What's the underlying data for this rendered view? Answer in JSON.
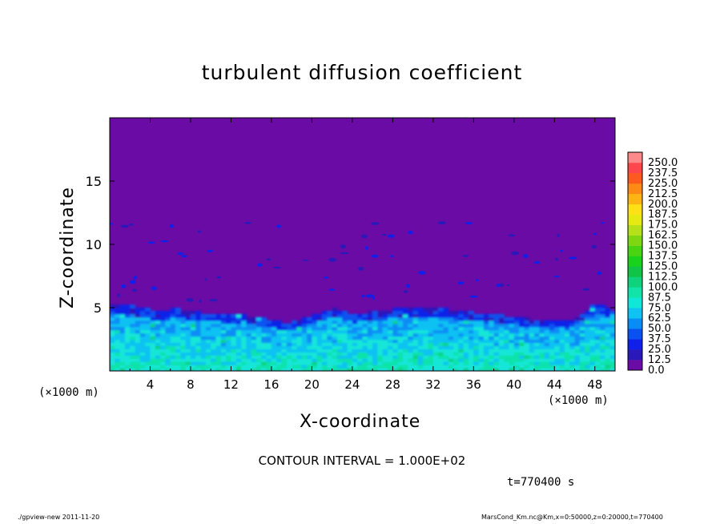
{
  "chart_data": {
    "type": "heatmap",
    "title": "turbulent diffusion coefficient",
    "xlabel": "X-coordinate",
    "ylabel": "Z-coordinate",
    "x_unit": "(×1000 m)",
    "x_ticks": [
      4,
      8,
      12,
      16,
      20,
      24,
      28,
      32,
      36,
      40,
      44,
      48
    ],
    "y_ticks": [
      5,
      10,
      15
    ],
    "xlim": [
      0,
      50
    ],
    "ylim": [
      0,
      20
    ],
    "colorbar": {
      "levels": [
        "0.0",
        "12.5",
        "25.0",
        "37.5",
        "50.0",
        "62.5",
        "75.0",
        "87.5",
        "100.0",
        "112.5",
        "125.0",
        "137.5",
        "150.0",
        "162.5",
        "175.0",
        "187.5",
        "200.0",
        "212.5",
        "225.0",
        "237.5",
        "250.0"
      ],
      "colors": [
        "#6a0ba6",
        "#2a19b8",
        "#1020e8",
        "#0a52f0",
        "#0a8cf5",
        "#10c2f2",
        "#12e6d8",
        "#11e3a9",
        "#10d27c",
        "#11c347",
        "#1ad21c",
        "#4ad313",
        "#7fd714",
        "#b6e01a",
        "#e7e914",
        "#fde018",
        "#fdb516",
        "#fd8a17",
        "#fd5a20",
        "#fd474d",
        "#fd8a8a"
      ]
    },
    "contour_interval": "CONTOUR INTERVAL = 1.000E+02",
    "turbulent_layer_top_km": [
      5.2,
      5.0,
      4.6,
      4.8,
      4.5,
      4.4,
      4.3,
      4.0,
      3.6,
      4.2,
      4.8,
      4.4,
      4.6,
      4.8,
      5.0,
      4.8,
      4.6,
      4.4,
      4.2,
      4.0,
      3.8,
      4.0,
      5.2,
      4.6
    ],
    "time": "t=770400 s"
  },
  "footer": {
    "left": "./gpview-new   2011-11-20",
    "right": "MarsCond_Km.nc@Km,x=0:50000,z=0:20000,t=770400"
  }
}
